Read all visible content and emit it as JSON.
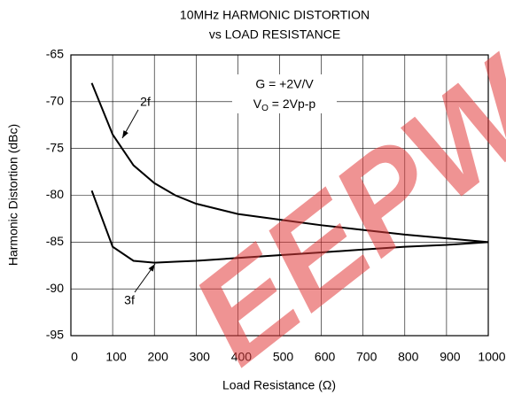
{
  "chart_data": {
    "type": "line",
    "title": [
      "10MHz HARMONIC DISTORTION",
      "vs LOAD RESISTANCE"
    ],
    "x_label": "Load Resistance (Ω)",
    "y_label": "Harmonic Distortion (dBc)",
    "x": [
      50,
      100,
      150,
      200,
      250,
      300,
      400,
      500,
      600,
      700,
      800,
      900,
      1000
    ],
    "series": [
      {
        "name": "2f",
        "color": "#000000",
        "values": [
          -68,
          -73.5,
          -76.8,
          -78.7,
          -80,
          -80.9,
          -82,
          -82.6,
          -83.2,
          -83.7,
          -84.2,
          -84.6,
          -85
        ]
      },
      {
        "name": "3f",
        "color": "#000000",
        "values": [
          -79.5,
          -85.5,
          -87,
          -87.2,
          -87.1,
          -87,
          -86.7,
          -86.4,
          -86.1,
          -85.8,
          -85.5,
          -85.3,
          -85
        ]
      }
    ],
    "annotations": [
      {
        "text": "G = +2V/V"
      },
      {
        "text": "V",
        "sub": "O",
        "rest": " = 2Vp-p"
      }
    ],
    "xlim": [
      0,
      1000
    ],
    "xticks": [
      0,
      100,
      200,
      300,
      400,
      500,
      600,
      700,
      800,
      900,
      1000
    ],
    "ylim": [
      -95,
      -65
    ],
    "yticks": [
      -95,
      -90,
      -85,
      -80,
      -75,
      -70,
      -65
    ],
    "grid": true,
    "watermark": "EEPW"
  }
}
